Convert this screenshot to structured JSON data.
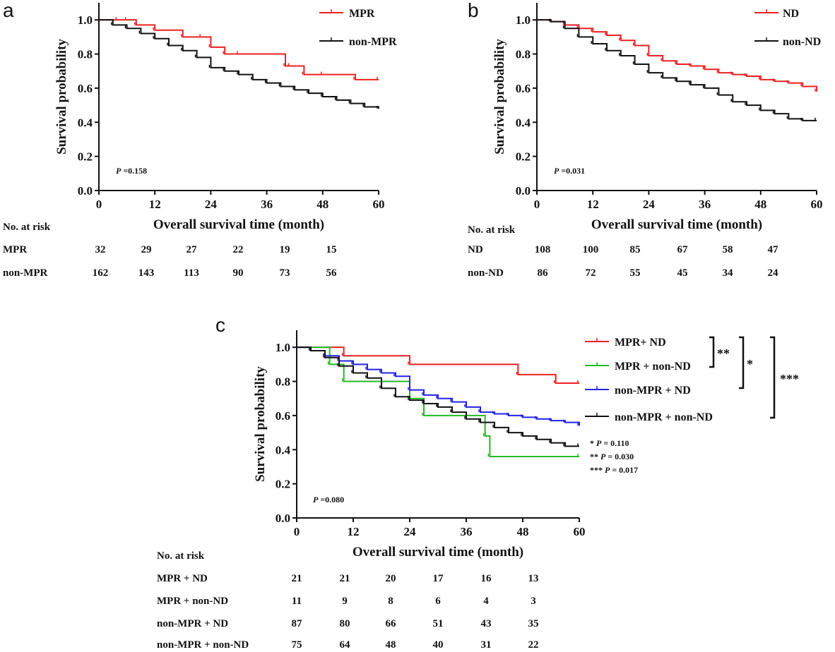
{
  "chart_data": [
    {
      "type": "line",
      "subtype": "kaplan-meier",
      "panel": "a",
      "xlabel": "Overall survival time (month)",
      "ylabel": "Survival probability",
      "xlim": [
        0,
        60
      ],
      "ylim": [
        0,
        1.1
      ],
      "xticks": [
        "0",
        "12",
        "24",
        "36",
        "48",
        "60"
      ],
      "yticks": [
        "0.0",
        "0.2",
        "0.4",
        "0.6",
        "0.8",
        "1.0"
      ],
      "p_value_label": "P =0.158",
      "series": [
        {
          "name": "MPR",
          "color": "#ee2222",
          "x": [
            0,
            4,
            6,
            8,
            12,
            18,
            22,
            24,
            27,
            30,
            40,
            41,
            44,
            48,
            55,
            60
          ],
          "y": [
            1.0,
            1.0,
            1.0,
            0.97,
            0.94,
            0.9,
            0.9,
            0.84,
            0.8,
            0.8,
            0.73,
            0.73,
            0.68,
            0.68,
            0.65,
            0.65
          ]
        },
        {
          "name": "non-MPR",
          "color": "#111111",
          "x": [
            0,
            3,
            6,
            9,
            12,
            15,
            18,
            21,
            24,
            27,
            30,
            33,
            36,
            39,
            42,
            45,
            48,
            51,
            54,
            57,
            60
          ],
          "y": [
            1.0,
            0.97,
            0.95,
            0.92,
            0.89,
            0.85,
            0.82,
            0.78,
            0.72,
            0.7,
            0.68,
            0.65,
            0.63,
            0.61,
            0.59,
            0.57,
            0.55,
            0.53,
            0.51,
            0.49,
            0.48
          ]
        }
      ],
      "risk_table": {
        "title": "No. at risk",
        "rows": [
          {
            "label": "MPR",
            "values": [
              "32",
              "29",
              "27",
              "22",
              "19",
              "15"
            ]
          },
          {
            "label": "non-MPR",
            "values": [
              "162",
              "143",
              "113",
              "90",
              "73",
              "56"
            ]
          }
        ]
      }
    },
    {
      "type": "line",
      "subtype": "kaplan-meier",
      "panel": "b",
      "xlabel": "Overall survival time (month)",
      "ylabel": "Survival probability",
      "xlim": [
        0,
        60
      ],
      "ylim": [
        0,
        1.1
      ],
      "xticks": [
        "0",
        "12",
        "24",
        "36",
        "48",
        "60"
      ],
      "yticks": [
        "0.0",
        "0.2",
        "0.4",
        "0.6",
        "0.8",
        "1.0"
      ],
      "p_value_label": "P =0.031",
      "series": [
        {
          "name": "ND",
          "color": "#ee2222",
          "x": [
            0,
            3,
            6,
            9,
            12,
            15,
            18,
            21,
            24,
            27,
            30,
            33,
            36,
            39,
            42,
            45,
            48,
            51,
            54,
            57,
            60
          ],
          "y": [
            1.0,
            0.99,
            0.97,
            0.95,
            0.93,
            0.91,
            0.88,
            0.85,
            0.79,
            0.76,
            0.74,
            0.73,
            0.71,
            0.69,
            0.68,
            0.67,
            0.65,
            0.64,
            0.63,
            0.61,
            0.58
          ]
        },
        {
          "name": "non-ND",
          "color": "#111111",
          "x": [
            0,
            3,
            6,
            9,
            12,
            15,
            18,
            21,
            24,
            27,
            30,
            33,
            36,
            39,
            42,
            45,
            48,
            51,
            54,
            57,
            60
          ],
          "y": [
            1.0,
            0.99,
            0.95,
            0.9,
            0.86,
            0.82,
            0.79,
            0.74,
            0.69,
            0.66,
            0.64,
            0.62,
            0.6,
            0.56,
            0.52,
            0.5,
            0.47,
            0.45,
            0.42,
            0.41,
            0.41
          ]
        }
      ],
      "risk_table": {
        "title": "No. at risk",
        "rows": [
          {
            "label": "ND",
            "values": [
              "108",
              "100",
              "85",
              "67",
              "58",
              "47"
            ]
          },
          {
            "label": "non-ND",
            "values": [
              "86",
              "72",
              "55",
              "45",
              "34",
              "24"
            ]
          }
        ]
      }
    },
    {
      "type": "line",
      "subtype": "kaplan-meier",
      "panel": "c",
      "xlabel": "Overall survival time (month)",
      "ylabel": "Survival probability",
      "xlim": [
        0,
        60
      ],
      "ylim": [
        0,
        1.1
      ],
      "xticks": [
        "0",
        "12",
        "24",
        "36",
        "48",
        "60"
      ],
      "yticks": [
        "0.0",
        "0.2",
        "0.4",
        "0.6",
        "0.8",
        "1.0"
      ],
      "p_value_label": "P =0.080",
      "pairwise": [
        {
          "stars": "*",
          "label": "P = 0.110"
        },
        {
          "stars": "**",
          "label": "P = 0.030"
        },
        {
          "stars": "***",
          "label": "P = 0.017"
        }
      ],
      "series": [
        {
          "name": "MPR+ ND",
          "color": "#ee2222",
          "x": [
            0,
            10,
            24,
            47,
            55,
            60
          ],
          "y": [
            1.0,
            0.95,
            0.9,
            0.84,
            0.79,
            0.79
          ]
        },
        {
          "name": "MPR + non-ND",
          "color": "#22bb22",
          "x": [
            0,
            7,
            10,
            24,
            27,
            40,
            41,
            60
          ],
          "y": [
            1.0,
            0.9,
            0.8,
            0.7,
            0.6,
            0.48,
            0.36,
            0.36
          ]
        },
        {
          "name": "non-MPR + ND",
          "color": "#2222ee",
          "x": [
            0,
            3,
            6,
            9,
            12,
            15,
            18,
            21,
            24,
            27,
            30,
            33,
            36,
            39,
            42,
            45,
            48,
            51,
            54,
            57,
            60
          ],
          "y": [
            1.0,
            0.98,
            0.95,
            0.92,
            0.9,
            0.87,
            0.85,
            0.83,
            0.75,
            0.72,
            0.7,
            0.68,
            0.65,
            0.62,
            0.61,
            0.6,
            0.59,
            0.58,
            0.57,
            0.56,
            0.54
          ]
        },
        {
          "name": "non-MPR + non-ND",
          "color": "#111111",
          "x": [
            0,
            3,
            6,
            9,
            12,
            15,
            18,
            21,
            24,
            27,
            30,
            33,
            36,
            39,
            42,
            45,
            48,
            51,
            54,
            57,
            60
          ],
          "y": [
            1.0,
            0.98,
            0.94,
            0.89,
            0.85,
            0.82,
            0.76,
            0.71,
            0.69,
            0.67,
            0.65,
            0.62,
            0.58,
            0.56,
            0.53,
            0.5,
            0.48,
            0.46,
            0.44,
            0.42,
            0.42
          ]
        }
      ],
      "risk_table": {
        "title": "No. at risk",
        "rows": [
          {
            "label": "MPR + ND",
            "values": [
              "21",
              "21",
              "20",
              "17",
              "16",
              "13"
            ]
          },
          {
            "label": "MPR + non-ND",
            "values": [
              "11",
              "9",
              "8",
              "6",
              "4",
              "3"
            ]
          },
          {
            "label": "non-MPR + ND",
            "values": [
              "87",
              "80",
              "66",
              "51",
              "43",
              "35"
            ]
          },
          {
            "label": "non-MPR + non-ND",
            "values": [
              "75",
              "64",
              "48",
              "40",
              "31",
              "22"
            ]
          }
        ]
      }
    }
  ]
}
